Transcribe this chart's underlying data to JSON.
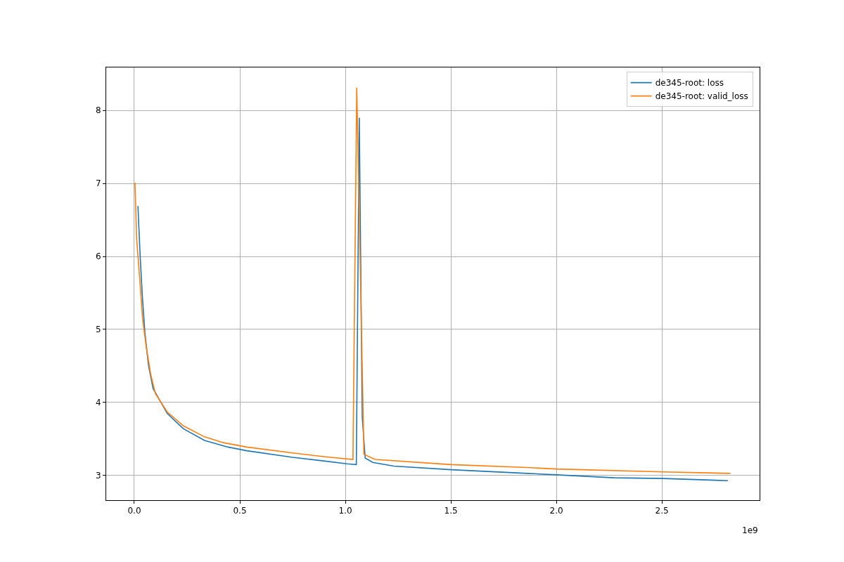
{
  "chart_data": {
    "type": "line",
    "annotations": [
      "1e9"
    ],
    "xlim": [
      -0.1333,
      2.963
    ],
    "xticks": [
      {
        "value": 0,
        "label": "0.0"
      },
      0.5,
      {
        "value": 1,
        "label": "1.0"
      },
      1.5,
      {
        "value": 2,
        "label": "2.0"
      },
      2.5
    ],
    "ylim": [
      2.663,
      8.587
    ],
    "yticks": [
      3,
      4,
      5,
      6,
      7,
      8
    ],
    "grid": true,
    "legend": "top right",
    "series": [
      {
        "name": "de345-root: loss",
        "color": "#1f77b4",
        "x": [
          0.017,
          0.028,
          0.039,
          0.05,
          0.067,
          0.089,
          0.156,
          0.233,
          0.333,
          0.444,
          0.533,
          0.75,
          0.897,
          1.008,
          1.052,
          1.066,
          1.08,
          1.094,
          1.13,
          1.23,
          1.502,
          1.863,
          2.0,
          2.274,
          2.506,
          2.813
        ],
        "values": [
          6.69,
          5.98,
          5.41,
          4.96,
          4.51,
          4.19,
          3.85,
          3.64,
          3.48,
          3.39,
          3.34,
          3.25,
          3.2,
          3.16,
          3.15,
          7.9,
          3.8,
          3.24,
          3.18,
          3.13,
          3.08,
          3.03,
          3.01,
          2.97,
          2.96,
          2.93
        ]
      },
      {
        "name": "de345-root: valid_loss",
        "color": "#ff7f0e",
        "x": [
          0.003,
          0.011,
          0.028,
          0.039,
          0.056,
          0.078,
          0.1,
          0.156,
          0.233,
          0.333,
          0.422,
          0.533,
          0.75,
          0.897,
          1.036,
          1.054,
          1.088,
          1.141,
          1.502,
          1.863,
          2.0,
          2.506,
          2.824
        ],
        "values": [
          7.01,
          6.24,
          5.6,
          5.15,
          4.77,
          4.38,
          4.12,
          3.87,
          3.68,
          3.53,
          3.45,
          3.39,
          3.31,
          3.26,
          3.22,
          8.31,
          3.29,
          3.22,
          3.15,
          3.11,
          3.09,
          3.05,
          3.03
        ]
      }
    ]
  }
}
